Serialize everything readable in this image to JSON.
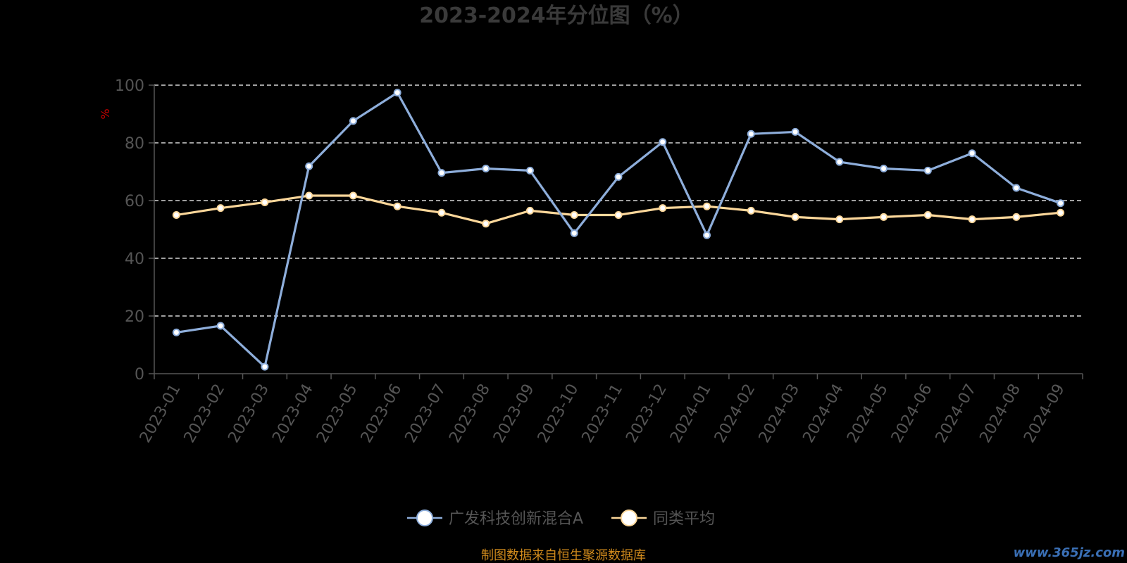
{
  "chart_data": {
    "type": "line",
    "title": "2023-2024年分位图（%）",
    "ylabel": "%",
    "ylim": [
      0,
      100
    ],
    "yticks": [
      0,
      20,
      40,
      60,
      80,
      100
    ],
    "grid": true,
    "legend_position": "bottom-center",
    "categories": [
      "2023-01",
      "2023-02",
      "2023-03",
      "2023-04",
      "2023-05",
      "2023-06",
      "2023-07",
      "2023-08",
      "2023-09",
      "2023-10",
      "2023-11",
      "2023-12",
      "2024-01",
      "2024-02",
      "2024-03",
      "2024-04",
      "2024-05",
      "2024-06",
      "2024-07",
      "2024-08",
      "2024-09"
    ],
    "series": [
      {
        "name": "广发科技创新混合A",
        "color": "#8eaedb",
        "values": [
          14.3,
          16.6,
          2.4,
          71.9,
          87.6,
          97.4,
          69.6,
          71.1,
          70.4,
          48.7,
          68.2,
          80.3,
          48.0,
          83.1,
          83.8,
          73.4,
          71.1,
          70.4,
          76.4,
          64.4,
          59.1
        ]
      },
      {
        "name": "同类平均",
        "color": "#fcd79a",
        "values": [
          55.0,
          57.4,
          59.4,
          61.7,
          61.7,
          58.0,
          55.8,
          52.0,
          56.5,
          55.0,
          55.0,
          57.4,
          58.0,
          56.5,
          54.3,
          53.5,
          54.3,
          55.0,
          53.5,
          54.3,
          55.8
        ]
      }
    ]
  },
  "footer": {
    "source": "制图数据来自恒生聚源数据库",
    "watermark": "www.365jz.com"
  }
}
